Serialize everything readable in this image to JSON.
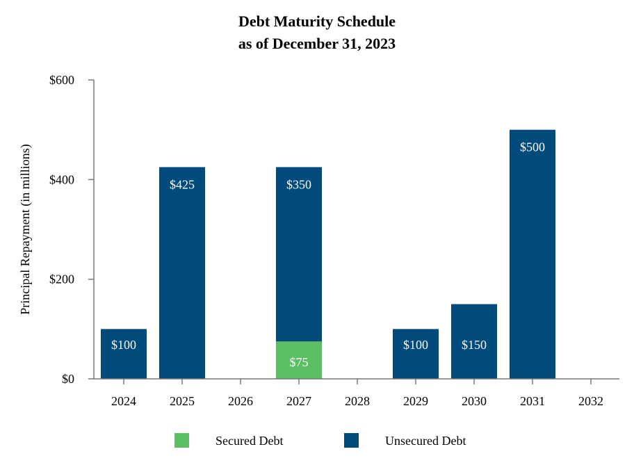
{
  "chart_data": {
    "type": "bar",
    "stacked": true,
    "title": "Debt Maturity Schedule",
    "subtitle": "as of December 31, 2023",
    "xlabel": "",
    "ylabel": "Principal Repayment (in millions)",
    "ylim": [
      0,
      600
    ],
    "yticks": [
      0,
      200,
      400,
      600
    ],
    "ytick_labels": [
      "$0",
      "$200",
      "$400",
      "$600"
    ],
    "grid": false,
    "legend_position": "bottom",
    "categories": [
      "2024",
      "2025",
      "2026",
      "2027",
      "2028",
      "2029",
      "2030",
      "2031",
      "2032"
    ],
    "series": [
      {
        "name": "Secured Debt",
        "color": "#5cbf64",
        "values": [
          0,
          0,
          0,
          75,
          0,
          0,
          0,
          0,
          0
        ]
      },
      {
        "name": "Unsecured Debt",
        "color": "#004a7c",
        "values": [
          100,
          425,
          0,
          350,
          0,
          100,
          150,
          500,
          0
        ]
      }
    ],
    "data_labels": [
      {
        "category": "2024",
        "series": "Unsecured Debt",
        "text": "$100"
      },
      {
        "category": "2025",
        "series": "Unsecured Debt",
        "text": "$425"
      },
      {
        "category": "2027",
        "series": "Unsecured Debt",
        "text": "$350"
      },
      {
        "category": "2027",
        "series": "Secured Debt",
        "text": "$75"
      },
      {
        "category": "2029",
        "series": "Unsecured Debt",
        "text": "$100"
      },
      {
        "category": "2030",
        "series": "Unsecured Debt",
        "text": "$150"
      },
      {
        "category": "2031",
        "series": "Unsecured Debt",
        "text": "$500"
      }
    ]
  }
}
